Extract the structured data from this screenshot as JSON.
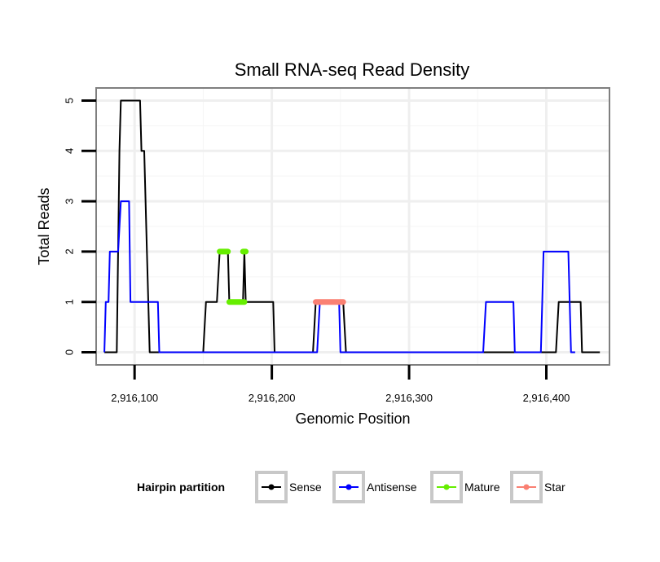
{
  "chart_data": {
    "type": "line",
    "title": "Small RNA-seq Read Density",
    "xlabel": "Genomic Position",
    "ylabel": "Total Reads",
    "xlim": [
      2916072,
      2916446
    ],
    "ylim": [
      -0.25,
      5.25
    ],
    "x_ticks": [
      2916100,
      2916200,
      2916300,
      2916400
    ],
    "x_tick_labels": [
      "2,916,100",
      "2,916,200",
      "2,916,300",
      "2,916,400"
    ],
    "y_ticks": [
      0,
      1,
      2,
      3,
      4,
      5
    ],
    "y_tick_labels": [
      "0",
      "1",
      "2",
      "3",
      "4",
      "5"
    ],
    "grid": true,
    "legend": {
      "title": "Hairpin partition",
      "position": "bottom",
      "entries": [
        "Sense",
        "Antisense",
        "Mature",
        "Star"
      ]
    },
    "series": [
      {
        "name": "Sense",
        "color": "#000000",
        "points": [
          [
            2916078,
            0
          ],
          [
            2916087,
            0
          ],
          [
            2916089,
            4
          ],
          [
            2916090,
            5
          ],
          [
            2916094,
            5
          ],
          [
            2916104,
            5
          ],
          [
            2916105,
            4
          ],
          [
            2916107,
            4
          ],
          [
            2916109,
            2
          ],
          [
            2916111,
            0
          ],
          [
            2916150,
            0
          ],
          [
            2916152,
            1
          ],
          [
            2916160,
            1
          ],
          [
            2916162,
            2
          ],
          [
            2916168,
            2
          ],
          [
            2916169,
            1
          ],
          [
            2916179,
            1
          ],
          [
            2916180,
            2
          ],
          [
            2916181,
            1
          ],
          [
            2916201,
            1
          ],
          [
            2916202,
            0
          ],
          [
            2916230,
            0
          ],
          [
            2916232,
            1
          ],
          [
            2916252,
            1
          ],
          [
            2916254,
            0
          ],
          [
            2916407,
            0
          ],
          [
            2916409,
            1
          ],
          [
            2916425,
            1
          ],
          [
            2916426,
            0
          ],
          [
            2916439,
            0
          ]
        ]
      },
      {
        "name": "Antisense",
        "color": "#0000ff",
        "points": [
          [
            2916078,
            0
          ],
          [
            2916079,
            1
          ],
          [
            2916081,
            1
          ],
          [
            2916082,
            2
          ],
          [
            2916088,
            2
          ],
          [
            2916090,
            3
          ],
          [
            2916096,
            3
          ],
          [
            2916097,
            1
          ],
          [
            2916103,
            1
          ],
          [
            2916104,
            1
          ],
          [
            2916117,
            1
          ],
          [
            2916118,
            0
          ],
          [
            2916233,
            0
          ],
          [
            2916235,
            1
          ],
          [
            2916249,
            1
          ],
          [
            2916250,
            0
          ],
          [
            2916354,
            0
          ],
          [
            2916356,
            1
          ],
          [
            2916376,
            1
          ],
          [
            2916377,
            0
          ],
          [
            2916396,
            0
          ],
          [
            2916397,
            1
          ],
          [
            2916398,
            2
          ],
          [
            2916416,
            2
          ],
          [
            2916418,
            0
          ],
          [
            2916421,
            0
          ]
        ]
      },
      {
        "name": "Mature",
        "color": "#66ee00",
        "segments": [
          [
            [
              2916162,
              2
            ],
            [
              2916168,
              2
            ]
          ],
          [
            [
              2916179,
              2
            ],
            [
              2916181,
              2
            ]
          ],
          [
            [
              2916169,
              1
            ],
            [
              2916180,
              1
            ]
          ]
        ]
      },
      {
        "name": "Star",
        "color": "#fa8072",
        "segments": [
          [
            [
              2916232,
              1
            ],
            [
              2916252,
              1
            ]
          ]
        ]
      }
    ]
  }
}
